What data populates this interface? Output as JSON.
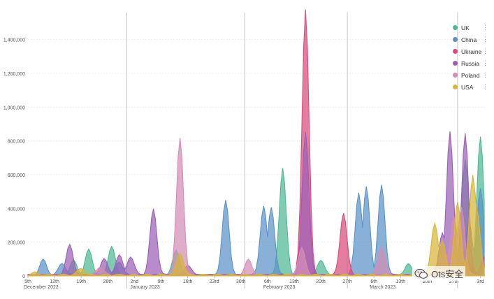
{
  "chart_data": {
    "type": "area",
    "y_ticks": [
      "0",
      "200,000",
      "400,000",
      "600,000",
      "800,000",
      "1,000,000",
      "1,200,000",
      "1,400,000"
    ],
    "ylim": [
      0,
      1560000
    ],
    "x_ticks": [
      {
        "day": 0,
        "label": "5th",
        "month_label": "December 2022"
      },
      {
        "day": 7,
        "label": "12th"
      },
      {
        "day": 14,
        "label": "19th"
      },
      {
        "day": 21,
        "label": "26th"
      },
      {
        "day": 28,
        "label": "2nd",
        "month_label": "January 2023"
      },
      {
        "day": 35,
        "label": "9th"
      },
      {
        "day": 42,
        "label": "16th"
      },
      {
        "day": 49,
        "label": "23rd"
      },
      {
        "day": 56,
        "label": "30th"
      },
      {
        "day": 63,
        "label": "6th",
        "month_label": "February 2023"
      },
      {
        "day": 70,
        "label": "13th"
      },
      {
        "day": 77,
        "label": "20th"
      },
      {
        "day": 84,
        "label": "27th"
      },
      {
        "day": 91,
        "label": "6th",
        "month_label": "March 2023"
      },
      {
        "day": 98,
        "label": "13th"
      },
      {
        "day": 105,
        "label": "20th"
      },
      {
        "day": 112,
        "label": "27th"
      },
      {
        "day": 119,
        "label": "3rd"
      }
    ],
    "month_boundaries": [
      26,
      57,
      84,
      113
    ],
    "x_range": [
      0,
      120
    ],
    "grid": true,
    "legend_position": "top-right",
    "series": [
      {
        "name": "UK",
        "color": "#4fb995",
        "peaks": [
          [
            12,
            85000
          ],
          [
            16,
            150000
          ],
          [
            22,
            170000
          ],
          [
            39,
            150000
          ],
          [
            67,
            630000
          ],
          [
            77,
            90000
          ],
          [
            100,
            65000
          ],
          [
            115,
            680000
          ],
          [
            119,
            815000
          ],
          [
            121,
            290000
          ]
        ]
      },
      {
        "name": "China",
        "color": "#5b93c7",
        "peaks": [
          [
            4,
            90000
          ],
          [
            9,
            70000
          ],
          [
            24,
            80000
          ],
          [
            52,
            440000
          ],
          [
            62,
            410000
          ],
          [
            64,
            400000
          ],
          [
            87,
            490000
          ],
          [
            89,
            520000
          ],
          [
            93,
            530000
          ],
          [
            116,
            320000
          ],
          [
            119,
            510000
          ]
        ]
      },
      {
        "name": "Ukraine",
        "color": "#da4c7c",
        "peaks": [
          [
            73,
            1570000
          ],
          [
            83,
            370000
          ],
          [
            103,
            20000
          ],
          [
            116,
            80000
          ]
        ]
      },
      {
        "name": "Russia",
        "color": "#9b5fb5",
        "peaks": [
          [
            11,
            180000
          ],
          [
            20,
            100000
          ],
          [
            24,
            120000
          ],
          [
            27,
            110000
          ],
          [
            33,
            390000
          ],
          [
            42,
            60000
          ],
          [
            73,
            845000
          ],
          [
            109,
            250000
          ],
          [
            111,
            850000
          ],
          [
            115,
            840000
          ],
          [
            120,
            110000
          ]
        ]
      },
      {
        "name": "Poland",
        "color": "#d38db5",
        "peaks": [
          [
            19,
            50000
          ],
          [
            40,
            810000
          ],
          [
            58,
            90000
          ],
          [
            72,
            160000
          ],
          [
            93,
            170000
          ],
          [
            110,
            120000
          ],
          [
            112,
            350000
          ],
          [
            114,
            400000
          ]
        ]
      },
      {
        "name": "USA",
        "color": "#d9b638",
        "peaks": [
          [
            2,
            15000
          ],
          [
            14,
            40000
          ],
          [
            40,
            130000
          ],
          [
            107,
            310000
          ],
          [
            109,
            200000
          ],
          [
            113,
            430000
          ],
          [
            117,
            590000
          ],
          [
            118,
            400000
          ]
        ]
      }
    ]
  },
  "watermark": {
    "text": "Ots安全"
  }
}
